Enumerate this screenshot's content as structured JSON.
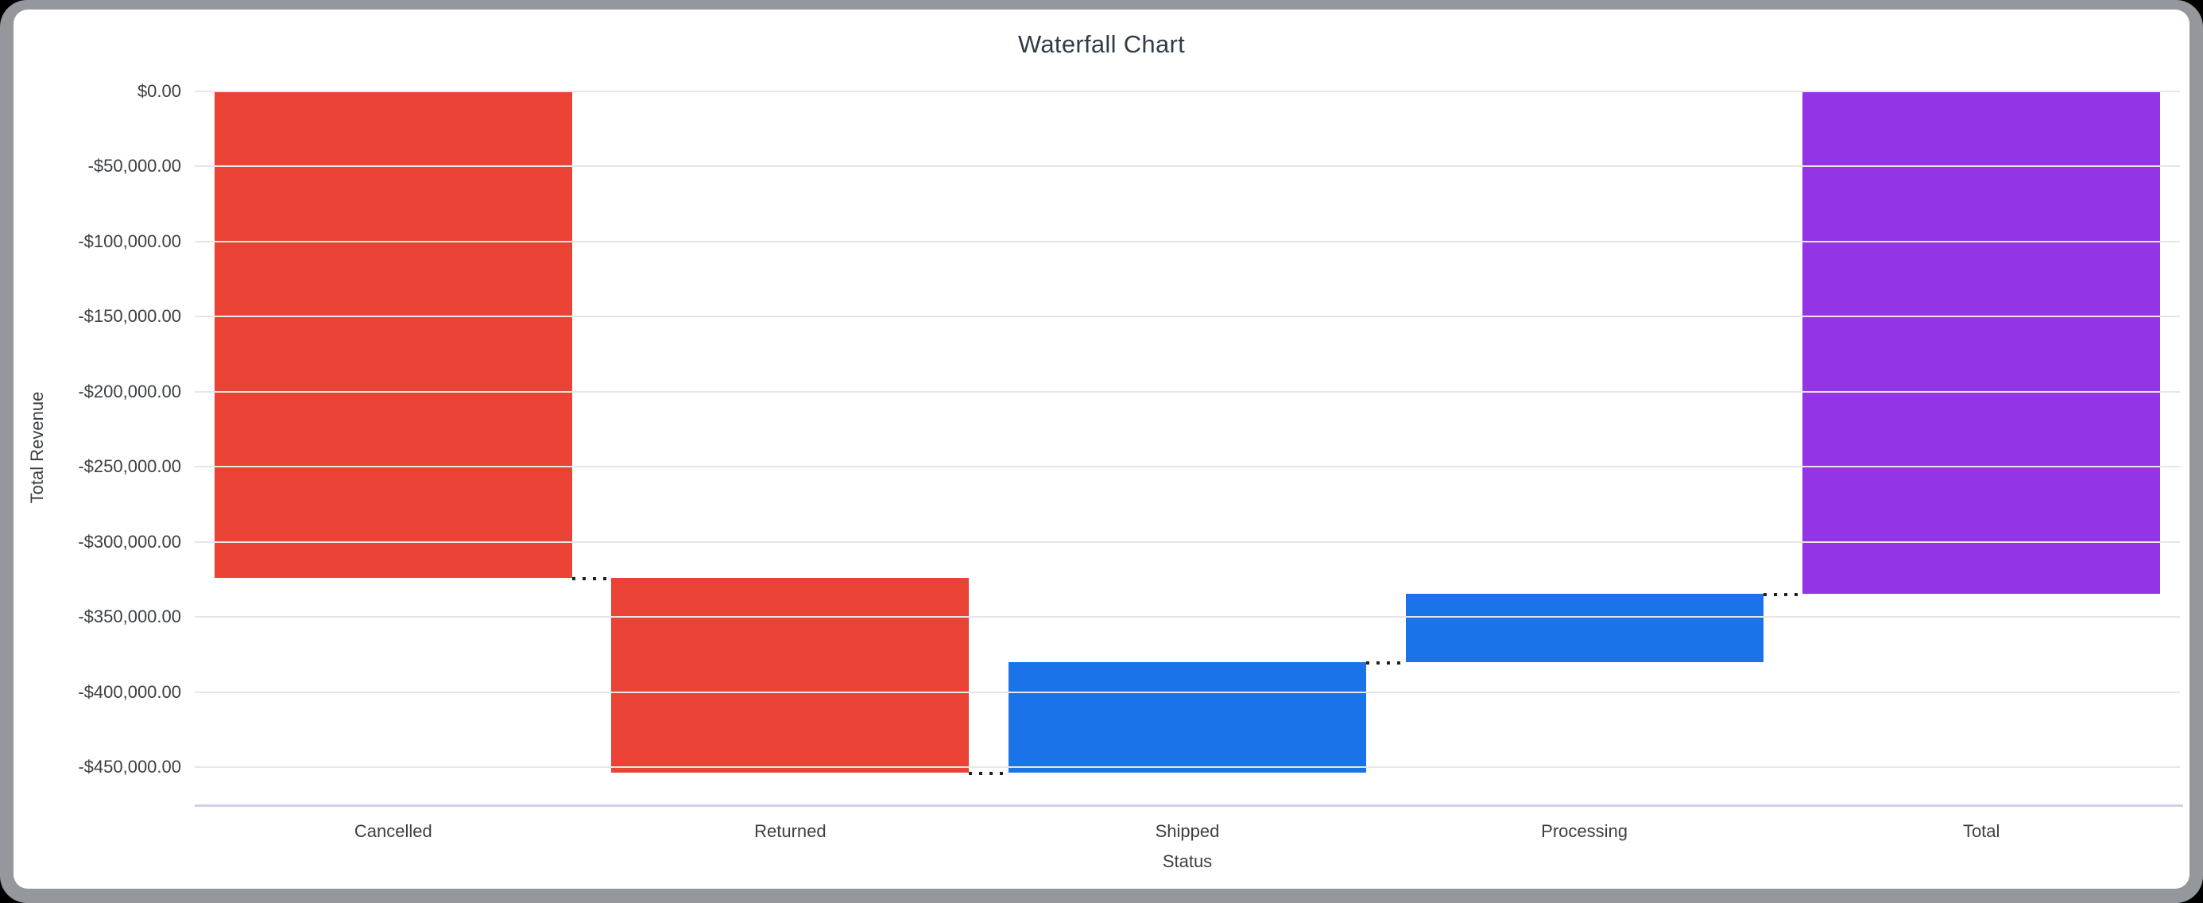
{
  "window": {
    "background_color": "#000000",
    "card_border_color": "#94979c",
    "card_background_color": "#ffffff"
  },
  "chart_data": {
    "type": "waterfall",
    "title": "Waterfall Chart",
    "xlabel": "Status",
    "ylabel": "Total Revenue",
    "categories": [
      "Cancelled",
      "Returned",
      "Shipped",
      "Processing",
      "Total"
    ],
    "bars": [
      {
        "label": "Cancelled",
        "delta": -324000,
        "start": 0,
        "end": -324000,
        "role": "negative",
        "color": "#EA4335"
      },
      {
        "label": "Returned",
        "delta": -129700,
        "start": -324000,
        "end": -453700,
        "role": "negative",
        "color": "#EA4335"
      },
      {
        "label": "Shipped",
        "delta": 73600,
        "start": -453700,
        "end": -380100,
        "role": "positive",
        "color": "#1A73E8"
      },
      {
        "label": "Processing",
        "delta": 45400,
        "start": -380100,
        "end": -334700,
        "role": "positive",
        "color": "#1A73E8"
      },
      {
        "label": "Total",
        "delta": -334700,
        "start": 0,
        "end": -334700,
        "role": "total",
        "color": "#9334E6"
      }
    ],
    "y_ticks": [
      {
        "label": "$0.00",
        "value": 0
      },
      {
        "label": "-$50,000.00",
        "value": -50000
      },
      {
        "label": "-$100,000.00",
        "value": -100000
      },
      {
        "label": "-$150,000.00",
        "value": -150000
      },
      {
        "label": "-$200,000.00",
        "value": -200000
      },
      {
        "label": "-$250,000.00",
        "value": -250000
      },
      {
        "label": "-$300,000.00",
        "value": -300000
      },
      {
        "label": "-$350,000.00",
        "value": -350000
      },
      {
        "label": "-$400,000.00",
        "value": -400000
      },
      {
        "label": "-$450,000.00",
        "value": -450000
      }
    ],
    "ylim": [
      0,
      -475000
    ],
    "grid": true,
    "legend": "none",
    "gridline_color": "#e6e6e6",
    "baseline_color": "#ccd2e8",
    "connector_color": "#202124",
    "axis_text_color": "#3c4043",
    "title_color": "#323c46"
  }
}
